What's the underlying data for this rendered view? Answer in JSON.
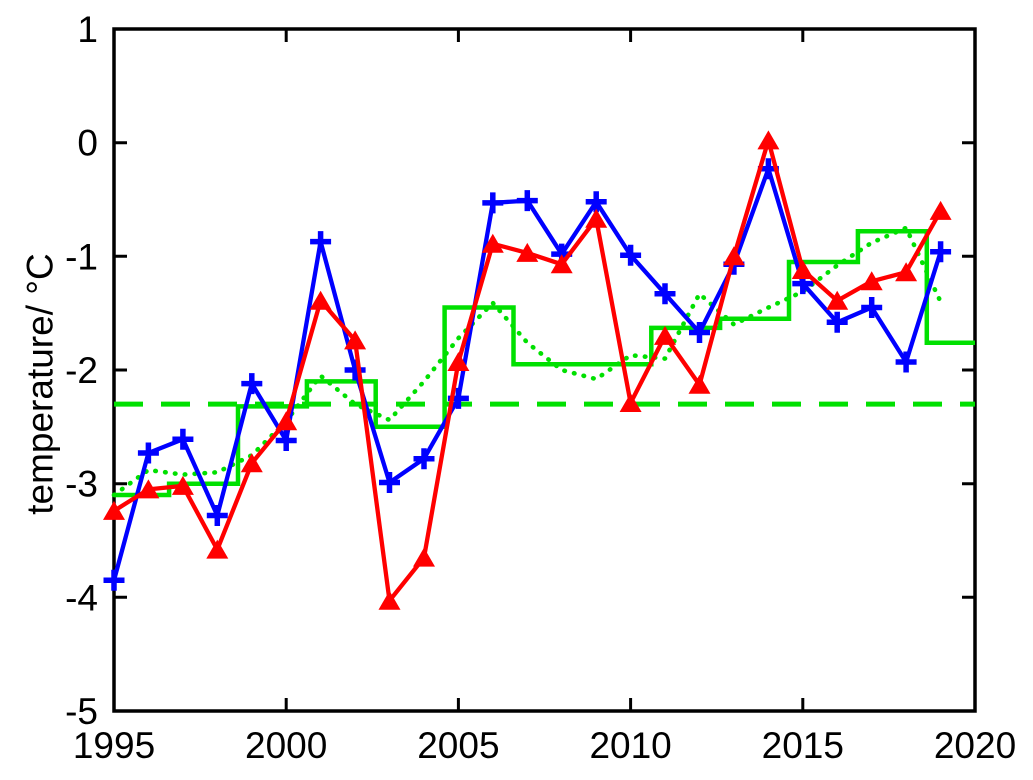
{
  "figure": {
    "background_color": "#ffffff",
    "axis_color": "#000000"
  },
  "chart_data": {
    "type": "line",
    "title": "",
    "xlabel": "",
    "ylabel": "temperature/ °C",
    "xlim": [
      1995,
      2020
    ],
    "ylim": [
      -5,
      1
    ],
    "xticks": [
      1995,
      2000,
      2005,
      2010,
      2015,
      2020
    ],
    "yticks": [
      1,
      0,
      -1,
      -2,
      -3,
      -4,
      -5
    ],
    "grid": false,
    "legend": "none",
    "x": [
      1995,
      1996,
      1997,
      1998,
      1999,
      2000,
      2001,
      2002,
      2003,
      2004,
      2005,
      2006,
      2007,
      2008,
      2009,
      2010,
      2011,
      2012,
      2013,
      2014,
      2015,
      2016,
      2017,
      2018,
      2019
    ],
    "series": [
      {
        "name": "smoothed-annual-series-green-dotted",
        "color": "#00e000",
        "line": "dotted",
        "marker": "none",
        "values": [
          -3.1,
          -2.88,
          -2.92,
          -2.9,
          -2.75,
          -2.45,
          -2.05,
          -2.3,
          -2.44,
          -2.1,
          -1.72,
          -1.41,
          -1.76,
          -2.0,
          -2.08,
          -1.87,
          -1.9,
          -1.33,
          -1.6,
          -1.45,
          -1.31,
          -1.08,
          -0.88,
          -0.75,
          -1.4
        ]
      },
      {
        "name": "annual-series-blue-plus",
        "color": "#0000ff",
        "line": "solid",
        "marker": "plus",
        "values": [
          -3.85,
          -2.73,
          -2.61,
          -3.28,
          -2.12,
          -2.62,
          -0.87,
          -2.0,
          -2.99,
          -2.78,
          -2.25,
          -0.53,
          -0.51,
          -0.98,
          -0.52,
          -0.99,
          -1.33,
          -1.67,
          -1.07,
          -0.23,
          -1.24,
          -1.58,
          -1.45,
          -1.93,
          -0.96
        ]
      },
      {
        "name": "annual-series-red-triangle",
        "color": "#ff0000",
        "line": "solid",
        "marker": "triangle-up",
        "values": [
          -3.24,
          -3.05,
          -3.02,
          -3.58,
          -2.82,
          -2.45,
          -1.39,
          -1.74,
          -4.03,
          -3.65,
          -1.93,
          -0.89,
          -0.97,
          -1.07,
          -0.67,
          -2.29,
          -1.7,
          -2.13,
          -1.0,
          0.02,
          -1.12,
          -1.39,
          -1.22,
          -1.14,
          -0.6
        ]
      }
    ],
    "step_series": {
      "name": "period-mean-steps-green-solid",
      "color": "#00e000",
      "line": "solid",
      "segments": [
        {
          "from": 1995.0,
          "to": 1996.6,
          "value": -3.1
        },
        {
          "from": 1996.6,
          "to": 1998.6,
          "value": -3.0
        },
        {
          "from": 1998.6,
          "to": 2000.6,
          "value": -2.32
        },
        {
          "from": 2000.6,
          "to": 2002.6,
          "value": -2.1
        },
        {
          "from": 2002.6,
          "to": 2004.6,
          "value": -2.5
        },
        {
          "from": 2004.6,
          "to": 2006.6,
          "value": -1.45
        },
        {
          "from": 2006.6,
          "to": 2010.6,
          "value": -1.95
        },
        {
          "from": 2010.6,
          "to": 2012.6,
          "value": -1.63
        },
        {
          "from": 2012.6,
          "to": 2014.6,
          "value": -1.55
        },
        {
          "from": 2014.6,
          "to": 2016.6,
          "value": -1.05
        },
        {
          "from": 2016.6,
          "to": 2018.6,
          "value": -0.78
        },
        {
          "from": 2018.6,
          "to": 2020.0,
          "value": -1.76
        }
      ]
    },
    "reference_line": {
      "name": "long-term-mean-green-dashed",
      "color": "#00e000",
      "line": "dashed",
      "value": -2.3,
      "from": 1995,
      "to": 2020
    }
  }
}
